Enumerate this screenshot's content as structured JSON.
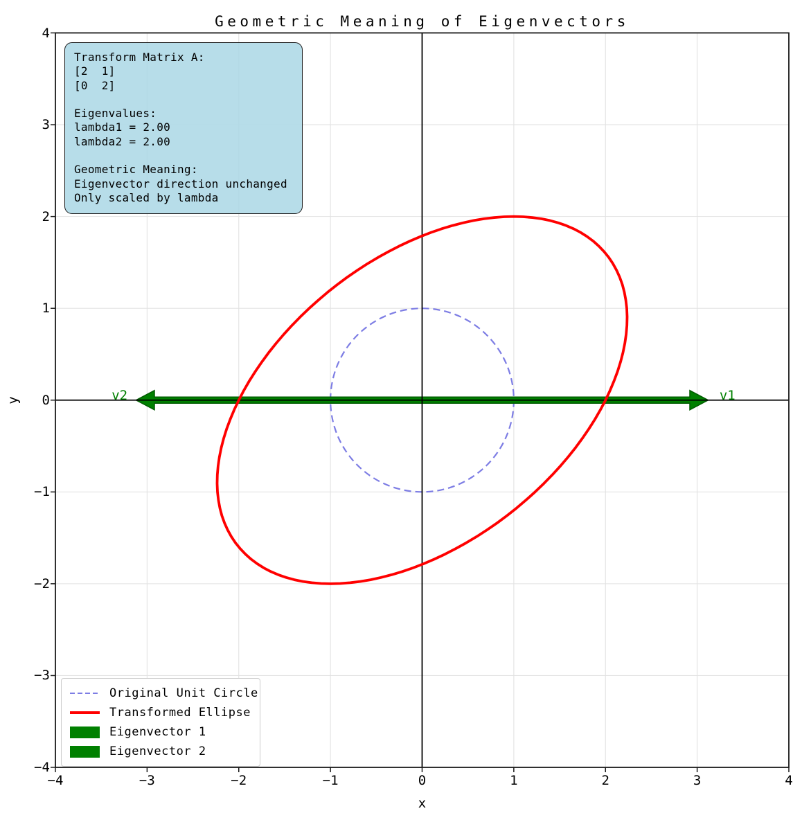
{
  "colors": {
    "background": "#ffffff",
    "grid": "#e2e2e2",
    "axis_line": "#000000",
    "spine": "#1a1a1a",
    "tick": "#1a1a1a",
    "circle_blue": "#7d7de4",
    "ellipse_red": "#ff0000",
    "eigen_green": "#008000",
    "eigen_green_edge": "#015c01",
    "info_box_bg": "#add8e6",
    "text": "#000000"
  },
  "info_box": {
    "text": "Transform Matrix A:\n[2  1]\n[0  2]\n\nEigenvalues:\nlambda1 = 2.00\nlambda2 = 2.00\n\nGeometric Meaning:\nEigenvector direction unchanged\nOnly scaled by lambda"
  },
  "legend": {
    "items": [
      {
        "label": "Original Unit Circle",
        "symbol": "dashed-line",
        "color": "#7d7de4"
      },
      {
        "label": "Transformed Ellipse",
        "symbol": "line",
        "color": "#ff0000"
      },
      {
        "label": "Eigenvector 1",
        "symbol": "patch",
        "color": "#008000"
      },
      {
        "label": "Eigenvector 2",
        "symbol": "patch",
        "color": "#008000"
      }
    ]
  },
  "chart_data": {
    "type": "line",
    "title": "Geometric Meaning of Eigenvectors",
    "xlabel": "x",
    "ylabel": "y",
    "xlim": [
      -4,
      4
    ],
    "ylim": [
      -4,
      4
    ],
    "xticks": [
      -4,
      -3,
      -2,
      -1,
      0,
      1,
      2,
      3,
      4
    ],
    "xtick_labels": [
      "−4",
      "−3",
      "−2",
      "−1",
      "0",
      "1",
      "2",
      "3",
      "4"
    ],
    "yticks": [
      -4,
      -3,
      -2,
      -1,
      0,
      1,
      2,
      3,
      4
    ],
    "ytick_labels": [
      "−4",
      "−3",
      "−2",
      "−1",
      "0",
      "1",
      "2",
      "3",
      "4"
    ],
    "grid": true,
    "equal_aspect": true,
    "transform_matrix": [
      [
        2,
        1
      ],
      [
        0,
        2
      ]
    ],
    "eigenvalues": [
      2.0,
      2.0
    ],
    "series": [
      {
        "name": "Original Unit Circle",
        "kind": "circle",
        "center": [
          0,
          0
        ],
        "radius": 1,
        "color": "#7d7de4",
        "dash": [
          10,
          6
        ],
        "width": 2.2
      },
      {
        "name": "Transformed Ellipse",
        "kind": "transformed_circle",
        "matrix": [
          [
            2,
            1
          ],
          [
            0,
            2
          ]
        ],
        "color": "#ff0000",
        "width": 3.8,
        "key_points": {
          "x_axis_crossings": [
            [
              -2,
              0
            ],
            [
              2,
              0
            ]
          ],
          "top": [
            1,
            2
          ],
          "bottom": [
            -1,
            -2
          ],
          "rightmost": [
            2.24,
            0.89
          ],
          "leftmost": [
            -2.24,
            -0.89
          ]
        }
      },
      {
        "name": "Eigenvector 1",
        "kind": "arrow",
        "from": [
          0,
          0
        ],
        "to": [
          3.12,
          0
        ],
        "head_length": 0.2,
        "head_width": 0.21,
        "shaft_width": 0.068,
        "color": "#008000",
        "edge": "#015c01"
      },
      {
        "name": "Eigenvector 2",
        "kind": "arrow",
        "from": [
          0,
          0
        ],
        "to": [
          -3.12,
          0
        ],
        "head_length": 0.2,
        "head_width": 0.21,
        "shaft_width": 0.068,
        "color": "#008000",
        "edge": "#015c01"
      }
    ],
    "annotations": [
      {
        "text": "v1",
        "x": 3.33,
        "y": 0.05,
        "color": "#008000"
      },
      {
        "text": "v2",
        "x": -3.3,
        "y": 0.05,
        "color": "#008000"
      }
    ]
  }
}
